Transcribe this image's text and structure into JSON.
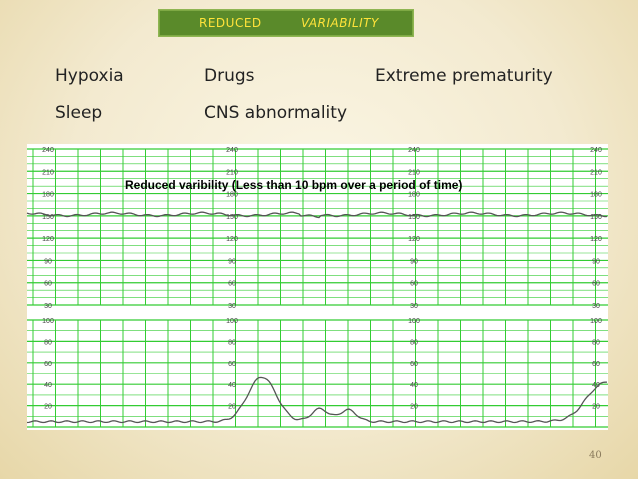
{
  "banner": {
    "word1": "REDUCED",
    "word2": "VARIABILITY",
    "bg_color": "#5a8a2a",
    "text_color": "#ffe33a"
  },
  "causes": {
    "row1": [
      "Hypoxia",
      "Drugs",
      "Extreme prematurity"
    ],
    "row2": [
      "Sleep",
      "CNS abnormality"
    ]
  },
  "strip": {
    "caption": "Reduced varibility (Less than 10 bpm over a period of time)",
    "top_scale": [
      "240",
      "210",
      "180",
      "150",
      "120",
      "90",
      "60",
      "30"
    ],
    "bottom_scale": [
      "100",
      "80",
      "60",
      "40",
      "20"
    ],
    "grid_color": "#33cc33",
    "trace_color": "#555555",
    "fhr_trace_bpm": 152
  },
  "slide_number": "40"
}
